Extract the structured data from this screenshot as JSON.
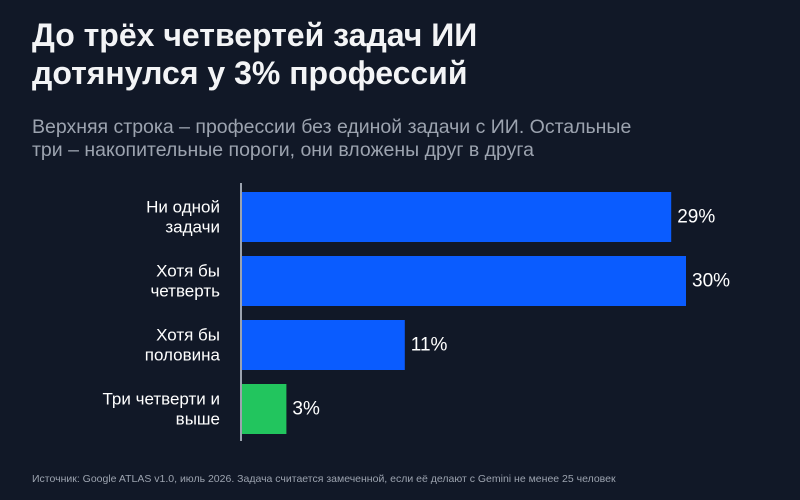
{
  "title_lines": [
    "До трёх четвертей задач ИИ",
    "дотянулся у 3% профессий"
  ],
  "subtitle_lines": [
    "Верхняя строка – профессии без единой задачи с ИИ. Остальные",
    "три – накопительные пороги, они вложены друг в друга"
  ],
  "source": "Источник: Google ATLAS v1.0, июль 2026. Задача считается замеченной, если её делают с Gemini не менее 25 человек",
  "colors": {
    "background": "#111827",
    "bar_default": "#0a5cff",
    "bar_highlight": "#22c55e",
    "axis": "#9ca3af"
  },
  "chart_data": {
    "type": "bar",
    "orientation": "horizontal",
    "categories": [
      [
        "Ни одной",
        "задачи"
      ],
      [
        "Хотя бы",
        "четверть"
      ],
      [
        "Хотя бы",
        "половина"
      ],
      [
        "Три четверти и",
        "выше"
      ]
    ],
    "values": [
      29,
      30,
      11,
      3
    ],
    "value_labels": [
      "29%",
      "30%",
      "11%",
      "3%"
    ],
    "highlight_index": 3,
    "unit": "%",
    "grid": false,
    "legend": "none"
  }
}
